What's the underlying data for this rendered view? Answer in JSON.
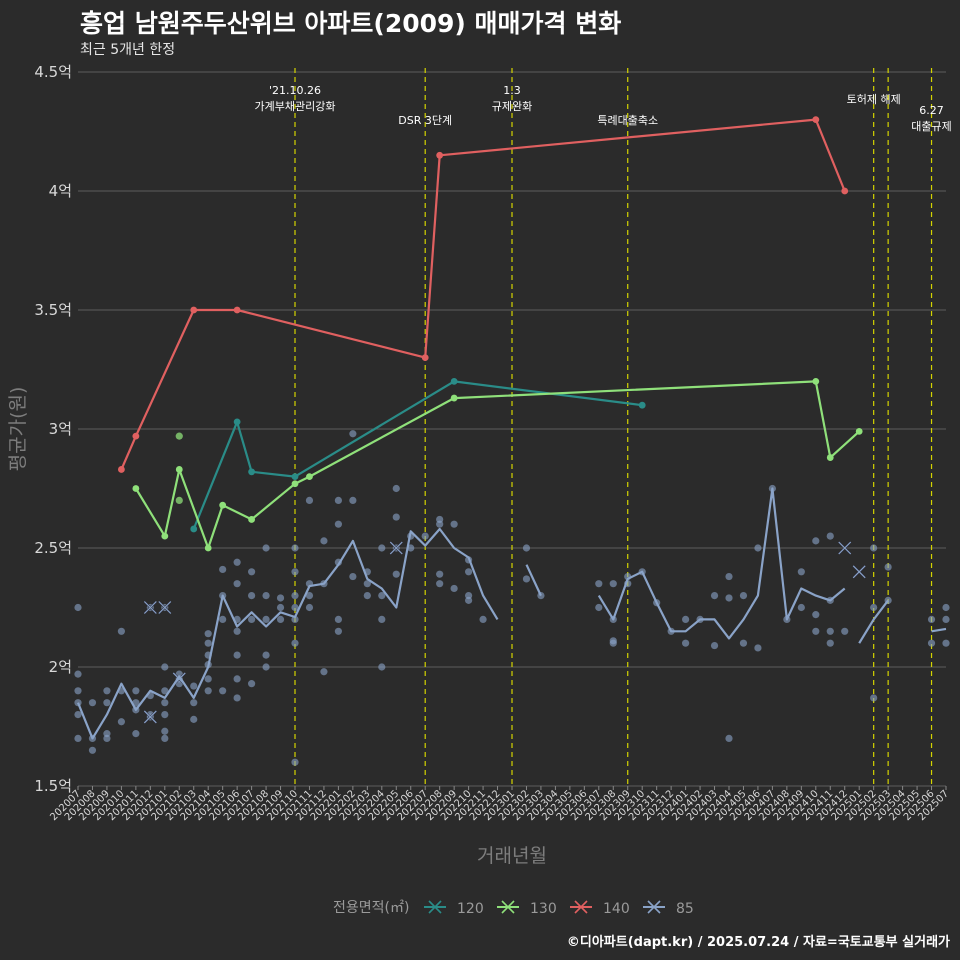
{
  "header": {
    "title": "흥업 남원주두산위브 아파트(2009) 매매가격 변화",
    "subtitle": "최근 5개년 한정"
  },
  "footer": {
    "caption": "©디아파트(dapt.kr) / 2025.07.24 / 자료=국토교통부 실거래가"
  },
  "colors": {
    "background": "#2b2b2b",
    "grid": "#5c5c5c",
    "vline": "#d4d400",
    "s120": "#2a8c88",
    "s130": "#8fe07a",
    "s140": "#e06060",
    "s85": "#8aa3c8"
  },
  "chart_data": {
    "type": "line",
    "xlabel": "거래년월",
    "ylabel": "평균가(원)",
    "ylim": [
      1.5,
      4.5
    ],
    "y_ticks": [
      "1.5억",
      "2억",
      "2.5억",
      "3억",
      "3.5억",
      "4억",
      "4.5억"
    ],
    "y_tick_values": [
      1.5,
      2.0,
      2.5,
      3.0,
      3.5,
      4.0,
      4.5
    ],
    "categories": [
      "202007",
      "202008",
      "202009",
      "202010",
      "202011",
      "202012",
      "202101",
      "202102",
      "202103",
      "202104",
      "202105",
      "202106",
      "202107",
      "202108",
      "202109",
      "202110",
      "202111",
      "202112",
      "202201",
      "202202",
      "202203",
      "202204",
      "202205",
      "202206",
      "202207",
      "202208",
      "202209",
      "202210",
      "202211",
      "202212",
      "202301",
      "202302",
      "202303",
      "202304",
      "202305",
      "202306",
      "202307",
      "202308",
      "202309",
      "202310",
      "202311",
      "202312",
      "202401",
      "202402",
      "202403",
      "202404",
      "202405",
      "202406",
      "202407",
      "202408",
      "202409",
      "202410",
      "202411",
      "202412",
      "202501",
      "202502",
      "202503",
      "202504",
      "202505",
      "202506",
      "202507"
    ],
    "legend_title": "전용면적(㎡)",
    "legend": [
      "120",
      "130",
      "140",
      "85"
    ],
    "legend_position": "bottom",
    "grid": true,
    "annotations": [
      {
        "x": "202110",
        "lines": [
          "'21.10.26",
          "가계부채관리강화"
        ]
      },
      {
        "x": "202207",
        "lines": [
          "DSR 3단계"
        ]
      },
      {
        "x": "202301",
        "lines": [
          "1.3",
          "규제완화"
        ]
      },
      {
        "x": "202309",
        "lines": [
          "특례대출축소"
        ]
      },
      {
        "x": "202502",
        "lines": [
          "토허제 해제"
        ]
      },
      {
        "x": "202503",
        "lines": [
          ""
        ]
      },
      {
        "x": "202506",
        "lines": [
          "6.27",
          "대출규제"
        ]
      }
    ],
    "series": [
      {
        "name": "120",
        "color_key": "s120",
        "points": [
          [
            "202103",
            2.58
          ],
          [
            "202106",
            3.03
          ],
          [
            "202107",
            2.82
          ],
          [
            "202110",
            2.8
          ],
          [
            "202209",
            3.2
          ],
          [
            "202310",
            3.1
          ]
        ]
      },
      {
        "name": "130",
        "color_key": "s130",
        "points": [
          [
            "202011",
            2.75
          ],
          [
            "202101",
            2.55
          ],
          [
            "202102",
            2.83
          ],
          [
            "202104",
            2.5
          ],
          [
            "202105",
            2.68
          ],
          [
            "202107",
            2.62
          ],
          [
            "202110",
            2.77
          ],
          [
            "202111",
            2.8
          ],
          [
            "202209",
            3.13
          ],
          [
            "202410",
            3.2
          ],
          [
            "202411",
            2.88
          ],
          [
            "202413",
            2.99
          ]
        ]
      },
      {
        "name": "140",
        "color_key": "s140",
        "points": [
          [
            "202010",
            2.83
          ],
          [
            "202011",
            2.97
          ],
          [
            "202103",
            3.5
          ],
          [
            "202106",
            3.5
          ],
          [
            "202207",
            3.3
          ],
          [
            "202208",
            4.15
          ],
          [
            "202410",
            4.3
          ],
          [
            "202412",
            4.0
          ]
        ]
      },
      {
        "name": "85",
        "color_key": "s85",
        "segments": [
          [
            [
              "202007",
              1.85
            ],
            [
              "202008",
              1.7
            ],
            [
              "202009",
              1.8
            ],
            [
              "202010",
              1.93
            ],
            [
              "202011",
              1.82
            ],
            [
              "202012",
              1.9
            ],
            [
              "202101",
              1.87
            ],
            [
              "202102",
              1.96
            ],
            [
              "202103",
              1.87
            ],
            [
              "202104",
              2.0
            ],
            [
              "202105",
              2.3
            ],
            [
              "202106",
              2.17
            ],
            [
              "202107",
              2.23
            ],
            [
              "202108",
              2.17
            ],
            [
              "202109",
              2.23
            ],
            [
              "202110",
              2.21
            ],
            [
              "202111",
              2.34
            ],
            [
              "202112",
              2.35
            ],
            [
              "202201",
              2.43
            ],
            [
              "202202",
              2.53
            ],
            [
              "202203",
              2.37
            ],
            [
              "202204",
              2.33
            ],
            [
              "202205",
              2.25
            ],
            [
              "202206",
              2.57
            ],
            [
              "202207",
              2.51
            ],
            [
              "202208",
              2.58
            ],
            [
              "202209",
              2.5
            ],
            [
              "202210",
              2.46
            ],
            [
              "202211",
              2.3
            ],
            [
              "202212",
              2.2
            ]
          ],
          [
            [
              "202302",
              2.43
            ],
            [
              "202303",
              2.3
            ]
          ],
          [
            [
              "202307",
              2.3
            ],
            [
              "202308",
              2.2
            ],
            [
              "202309",
              2.37
            ],
            [
              "202310",
              2.4
            ],
            [
              "202311",
              2.27
            ],
            [
              "202312",
              2.15
            ],
            [
              "202401",
              2.15
            ],
            [
              "202402",
              2.2
            ],
            [
              "202403",
              2.2
            ],
            [
              "202404",
              2.12
            ],
            [
              "202405",
              2.2
            ],
            [
              "202406",
              2.3
            ],
            [
              "202407",
              2.75
            ],
            [
              "202408",
              2.2
            ],
            [
              "202409",
              2.33
            ],
            [
              "202410",
              2.3
            ],
            [
              "202411",
              2.28
            ],
            [
              "202412",
              2.33
            ]
          ],
          [
            [
              "202501",
              2.1
            ],
            [
              "202502",
              2.2
            ],
            [
              "202503",
              2.28
            ]
          ],
          [
            [
              "202506",
              2.15
            ],
            [
              "202507",
              2.16
            ]
          ]
        ]
      }
    ],
    "scatter_85": [
      [
        "202007",
        2.25
      ],
      [
        "202007",
        1.97
      ],
      [
        "202007",
        1.9
      ],
      [
        "202007",
        1.85
      ],
      [
        "202007",
        1.8
      ],
      [
        "202007",
        1.7
      ],
      [
        "202008",
        1.85
      ],
      [
        "202008",
        1.7
      ],
      [
        "202008",
        1.65
      ],
      [
        "202009",
        1.9
      ],
      [
        "202009",
        1.85
      ],
      [
        "202009",
        1.72
      ],
      [
        "202009",
        1.7
      ],
      [
        "202010",
        2.15
      ],
      [
        "202010",
        1.9
      ],
      [
        "202010",
        1.77
      ],
      [
        "202011",
        1.9
      ],
      [
        "202011",
        1.85
      ],
      [
        "202011",
        1.82
      ],
      [
        "202011",
        1.72
      ],
      [
        "202012",
        2.25
      ],
      [
        "202012",
        1.88
      ],
      [
        "202012",
        1.8
      ],
      [
        "202012",
        1.79
      ],
      [
        "202101",
        2.25
      ],
      [
        "202101",
        2.0
      ],
      [
        "202101",
        1.9
      ],
      [
        "202101",
        1.85
      ],
      [
        "202101",
        1.8
      ],
      [
        "202101",
        1.73
      ],
      [
        "202101",
        1.7
      ],
      [
        "202102",
        1.97
      ],
      [
        "202102",
        1.95
      ],
      [
        "202102",
        1.93
      ],
      [
        "202103",
        1.92
      ],
      [
        "202103",
        1.85
      ],
      [
        "202103",
        1.78
      ],
      [
        "202104",
        2.14
      ],
      [
        "202104",
        2.1
      ],
      [
        "202104",
        2.05
      ],
      [
        "202104",
        2.01
      ],
      [
        "202104",
        1.95
      ],
      [
        "202104",
        1.9
      ],
      [
        "202105",
        2.41
      ],
      [
        "202105",
        2.3
      ],
      [
        "202105",
        2.2
      ],
      [
        "202105",
        1.9
      ],
      [
        "202106",
        2.44
      ],
      [
        "202106",
        2.35
      ],
      [
        "202106",
        2.2
      ],
      [
        "202106",
        2.15
      ],
      [
        "202106",
        2.05
      ],
      [
        "202106",
        1.95
      ],
      [
        "202106",
        1.87
      ],
      [
        "202107",
        2.4
      ],
      [
        "202107",
        2.3
      ],
      [
        "202107",
        2.2
      ],
      [
        "202107",
        1.93
      ],
      [
        "202108",
        2.5
      ],
      [
        "202108",
        2.3
      ],
      [
        "202108",
        2.2
      ],
      [
        "202108",
        2.05
      ],
      [
        "202108",
        2.0
      ],
      [
        "202109",
        2.29
      ],
      [
        "202109",
        2.25
      ],
      [
        "202109",
        2.2
      ],
      [
        "202110",
        2.5
      ],
      [
        "202110",
        2.4
      ],
      [
        "202110",
        2.3
      ],
      [
        "202110",
        2.25
      ],
      [
        "202110",
        2.2
      ],
      [
        "202110",
        2.1
      ],
      [
        "202110",
        1.6
      ],
      [
        "202111",
        2.7
      ],
      [
        "202111",
        2.35
      ],
      [
        "202111",
        2.3
      ],
      [
        "202111",
        2.25
      ],
      [
        "202112",
        2.53
      ],
      [
        "202112",
        2.35
      ],
      [
        "202112",
        1.98
      ],
      [
        "202201",
        2.7
      ],
      [
        "202201",
        2.6
      ],
      [
        "202201",
        2.44
      ],
      [
        "202201",
        2.2
      ],
      [
        "202201",
        2.15
      ],
      [
        "202202",
        2.98
      ],
      [
        "202202",
        2.7
      ],
      [
        "202202",
        2.38
      ],
      [
        "202203",
        2.4
      ],
      [
        "202203",
        2.35
      ],
      [
        "202203",
        2.3
      ],
      [
        "202204",
        2.5
      ],
      [
        "202204",
        2.3
      ],
      [
        "202204",
        2.2
      ],
      [
        "202204",
        2.0
      ],
      [
        "202205",
        2.75
      ],
      [
        "202205",
        2.63
      ],
      [
        "202205",
        2.5
      ],
      [
        "202205",
        2.39
      ],
      [
        "202206",
        2.55
      ],
      [
        "202206",
        2.5
      ],
      [
        "202207",
        2.55
      ],
      [
        "202208",
        2.62
      ],
      [
        "202208",
        2.6
      ],
      [
        "202208",
        2.39
      ],
      [
        "202208",
        2.35
      ],
      [
        "202209",
        2.6
      ],
      [
        "202209",
        2.33
      ],
      [
        "202210",
        2.45
      ],
      [
        "202210",
        2.4
      ],
      [
        "202210",
        2.3
      ],
      [
        "202210",
        2.28
      ],
      [
        "202211",
        2.2
      ],
      [
        "202302",
        2.5
      ],
      [
        "202302",
        2.37
      ],
      [
        "202303",
        2.3
      ],
      [
        "202307",
        2.35
      ],
      [
        "202307",
        2.25
      ],
      [
        "202308",
        2.35
      ],
      [
        "202308",
        2.2
      ],
      [
        "202308",
        2.11
      ],
      [
        "202308",
        2.1
      ],
      [
        "202309",
        2.38
      ],
      [
        "202309",
        2.35
      ],
      [
        "202310",
        2.4
      ],
      [
        "202311",
        2.27
      ],
      [
        "202312",
        2.15
      ],
      [
        "202401",
        2.2
      ],
      [
        "202401",
        2.1
      ],
      [
        "202402",
        2.2
      ],
      [
        "202403",
        2.3
      ],
      [
        "202403",
        2.09
      ],
      [
        "202404",
        2.38
      ],
      [
        "202404",
        2.29
      ],
      [
        "202404",
        1.7
      ],
      [
        "202405",
        2.3
      ],
      [
        "202405",
        2.1
      ],
      [
        "202406",
        2.5
      ],
      [
        "202406",
        2.08
      ],
      [
        "202407",
        2.75
      ],
      [
        "202408",
        2.2
      ],
      [
        "202409",
        2.4
      ],
      [
        "202409",
        2.25
      ],
      [
        "202410",
        2.53
      ],
      [
        "202410",
        2.22
      ],
      [
        "202410",
        2.15
      ],
      [
        "202411",
        2.55
      ],
      [
        "202411",
        2.28
      ],
      [
        "202411",
        2.15
      ],
      [
        "202411",
        2.1
      ],
      [
        "202412",
        2.15
      ],
      [
        "202502",
        2.5
      ],
      [
        "202502",
        2.25
      ],
      [
        "202502",
        1.87
      ],
      [
        "202503",
        2.42
      ],
      [
        "202503",
        2.28
      ],
      [
        "202506",
        2.2
      ],
      [
        "202506",
        2.1
      ],
      [
        "202507",
        2.25
      ],
      [
        "202507",
        2.2
      ],
      [
        "202507",
        2.1
      ]
    ],
    "crosses": [
      {
        "series": "85",
        "x": "202012",
        "y": 2.25
      },
      {
        "series": "85",
        "x": "202101",
        "y": 2.25
      },
      {
        "series": "85",
        "x": "202012",
        "y": 1.79
      },
      {
        "series": "85",
        "x": "202102",
        "y": 1.95
      },
      {
        "series": "85",
        "x": "202501",
        "y": 2.4
      },
      {
        "series": "85",
        "x": "202412",
        "y": 2.5
      },
      {
        "series": "85",
        "x": "202205",
        "y": 2.5
      }
    ],
    "extra_points_130": [
      [
        "202102",
        2.97
      ],
      [
        "202102",
        2.7
      ]
    ]
  }
}
